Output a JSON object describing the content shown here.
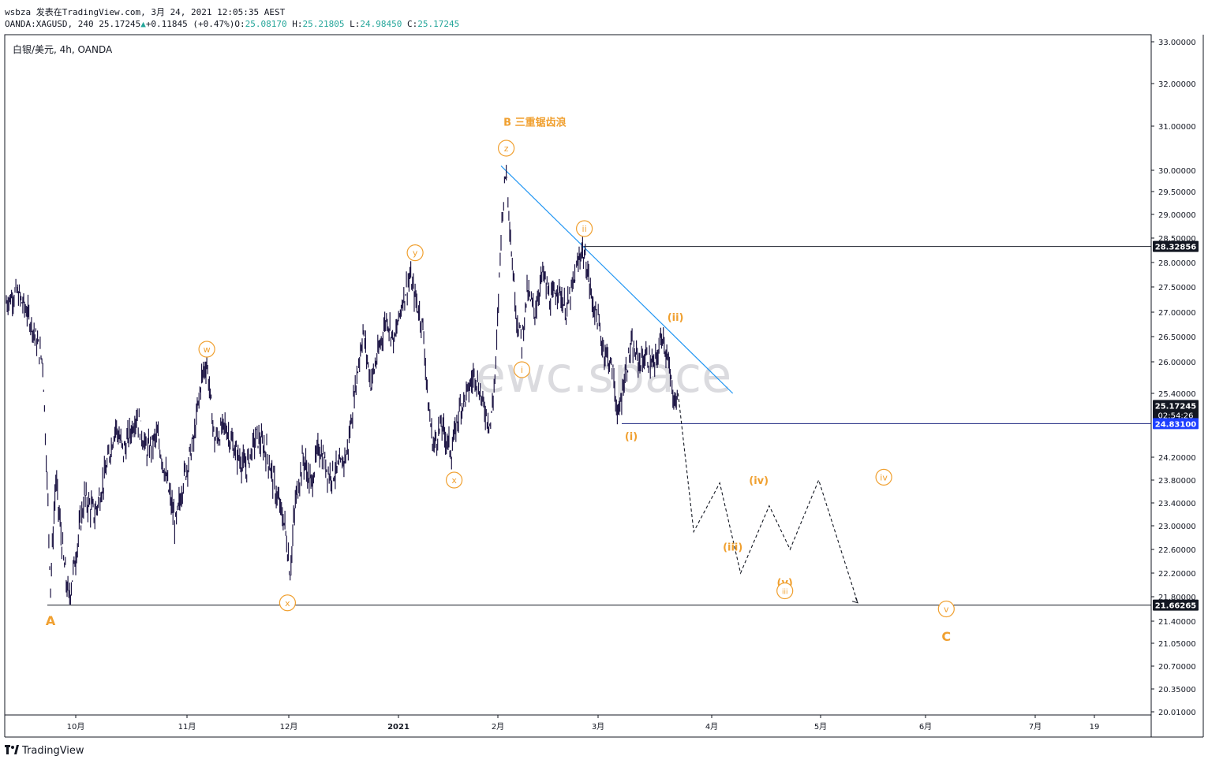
{
  "header": {
    "line1": "wsbza 发表在TradingView.com, 3月 24, 2021 12:05:35 AEST",
    "symbol": "OANDA:XAGUSD, 240 25.17245",
    "change": "+0.11845 (+0.47%)",
    "o_label": "O:",
    "o_value": "25.08170",
    "h_label": "H:",
    "h_value": "25.21805",
    "l_label": "L:",
    "l_value": "24.98450",
    "c_label": "C:",
    "c_value": "25.17245"
  },
  "footer": {
    "brand": "TradingView"
  },
  "colors": {
    "candle": "#1f1746",
    "wave": "#f0a030",
    "trend": "#2196f3",
    "grid": "#e0e3eb"
  },
  "chart_data": {
    "type": "candlestick",
    "title": "白银/美元, 4h, OANDA",
    "watermark": "ewc.space",
    "y_ticks": [
      33.0,
      32.0,
      31.0,
      30.0,
      29.5,
      29.0,
      28.5,
      28.0,
      27.5,
      27.0,
      26.5,
      26.0,
      25.4,
      24.2,
      23.8,
      23.4,
      23.0,
      22.6,
      22.2,
      21.8,
      21.4,
      21.05,
      20.7,
      20.35,
      20.01
    ],
    "y_tick_labels": [
      "33.00000",
      "32.00000",
      "31.00000",
      "30.00000",
      "29.50000",
      "29.00000",
      "28.50000",
      "28.00000",
      "27.50000",
      "27.00000",
      "26.50000",
      "26.00000",
      "25.40000",
      "24.20000",
      "23.80000",
      "23.40000",
      "23.00000",
      "22.60000",
      "22.20000",
      "21.80000",
      "21.40000",
      "21.05000",
      "20.70000",
      "20.35000",
      "20.01000"
    ],
    "x_ticks": [
      "10月",
      "11月",
      "12月",
      "2021",
      "2月",
      "3月",
      "4月",
      "5月",
      "6月",
      "7月",
      "19"
    ],
    "price_tags": [
      {
        "label": "28.32856",
        "value": 28.32856,
        "style": "dark"
      },
      {
        "label": "25.17245",
        "value": 25.17245,
        "style": "dark",
        "sub": "02:54:26"
      },
      {
        "label": "24.83100",
        "value": 24.831,
        "style": "blue"
      },
      {
        "label": "21.66265",
        "value": 21.66265,
        "style": "dark"
      }
    ],
    "horizontal_lines": [
      28.32856,
      24.831,
      21.66265
    ],
    "price_path": [
      [
        0,
        27.2
      ],
      [
        4,
        27.4
      ],
      [
        8,
        27.0
      ],
      [
        10,
        26.7
      ],
      [
        14,
        26.0
      ],
      [
        17,
        22.0
      ],
      [
        19,
        23.8
      ],
      [
        22,
        22.4
      ],
      [
        24,
        21.75
      ],
      [
        27,
        22.6
      ],
      [
        30,
        23.5
      ],
      [
        34,
        23.2
      ],
      [
        38,
        23.9
      ],
      [
        42,
        24.8
      ],
      [
        45,
        24.3
      ],
      [
        50,
        25.0
      ],
      [
        54,
        24.3
      ],
      [
        58,
        24.6
      ],
      [
        62,
        23.7
      ],
      [
        65,
        23.0
      ],
      [
        68,
        23.8
      ],
      [
        72,
        24.5
      ],
      [
        75,
        25.7
      ],
      [
        77,
        26.0
      ],
      [
        80,
        24.5
      ],
      [
        84,
        24.8
      ],
      [
        88,
        24.3
      ],
      [
        92,
        24.0
      ],
      [
        96,
        24.6
      ],
      [
        100,
        24.3
      ],
      [
        104,
        23.5
      ],
      [
        107,
        23.0
      ],
      [
        109,
        22.2
      ],
      [
        111,
        23.4
      ],
      [
        114,
        24.2
      ],
      [
        117,
        23.7
      ],
      [
        120,
        24.4
      ],
      [
        124,
        23.9
      ],
      [
        128,
        24.0
      ],
      [
        131,
        24.3
      ],
      [
        134,
        25.5
      ],
      [
        137,
        26.6
      ],
      [
        140,
        25.6
      ],
      [
        143,
        26.2
      ],
      [
        146,
        26.9
      ],
      [
        149,
        26.4
      ],
      [
        152,
        27.2
      ],
      [
        155,
        27.7
      ],
      [
        158,
        27.1
      ],
      [
        160,
        26.7
      ],
      [
        162,
        25.2
      ],
      [
        164,
        24.4
      ],
      [
        167,
        24.8
      ],
      [
        171,
        24.3
      ],
      [
        174,
        25.1
      ],
      [
        177,
        25.4
      ],
      [
        180,
        25.8
      ],
      [
        183,
        25.2
      ],
      [
        186,
        24.8
      ],
      [
        188,
        25.9
      ],
      [
        190,
        28.6
      ],
      [
        192,
        30.1
      ],
      [
        194,
        28.2
      ],
      [
        196,
        26.9
      ],
      [
        198,
        26.4
      ],
      [
        200,
        27.4
      ],
      [
        203,
        27.0
      ],
      [
        206,
        27.8
      ],
      [
        209,
        27.2
      ],
      [
        212,
        27.5
      ],
      [
        215,
        27.0
      ],
      [
        218,
        27.6
      ],
      [
        221,
        28.3
      ],
      [
        223,
        27.9
      ],
      [
        225,
        27.2
      ],
      [
        227,
        26.9
      ],
      [
        229,
        26.3
      ],
      [
        231,
        26.1
      ],
      [
        233,
        25.8
      ],
      [
        235,
        24.9
      ],
      [
        237,
        25.6
      ],
      [
        240,
        26.3
      ],
      [
        243,
        26.0
      ],
      [
        246,
        26.1
      ],
      [
        249,
        25.9
      ],
      [
        252,
        26.6
      ],
      [
        254,
        26.0
      ],
      [
        256,
        25.4
      ],
      [
        258,
        25.17
      ]
    ],
    "projection": [
      [
        258,
        25.4
      ],
      [
        264,
        22.9
      ],
      [
        274,
        23.75
      ],
      [
        282,
        22.2
      ],
      [
        293,
        23.35
      ],
      [
        301,
        22.6
      ],
      [
        312,
        23.8
      ],
      [
        327,
        21.7
      ]
    ],
    "trendline": [
      [
        190,
        30.1
      ],
      [
        279,
        25.4
      ]
    ],
    "wave_labels": [
      {
        "text": "A",
        "x": 17,
        "v": 21.4,
        "circle": false
      },
      {
        "text": "w",
        "x": 77,
        "v": 26.25,
        "circle": true
      },
      {
        "text": "x",
        "x": 108,
        "v": 21.7,
        "circle": true
      },
      {
        "text": "y",
        "x": 157,
        "v": 28.2,
        "circle": true
      },
      {
        "text": "x",
        "x": 172,
        "v": 23.8,
        "circle": true
      },
      {
        "text": "z",
        "x": 192,
        "v": 30.5,
        "circle": true
      },
      {
        "text": "B 三重锯齿浪",
        "x": 203,
        "v": 31.1,
        "circle": false
      },
      {
        "text": "i",
        "x": 198,
        "v": 25.85,
        "circle": true
      },
      {
        "text": "ii",
        "x": 222,
        "v": 28.7,
        "circle": true
      },
      {
        "text": "(i)",
        "x": 240,
        "v": 24.6,
        "circle": false
      },
      {
        "text": "(ii)",
        "x": 257,
        "v": 26.9,
        "circle": false
      },
      {
        "text": "(iii)",
        "x": 279,
        "v": 22.65,
        "circle": false
      },
      {
        "text": "(iv)",
        "x": 289,
        "v": 23.8,
        "circle": false
      },
      {
        "text": "(v)",
        "x": 299,
        "v": 22.05,
        "circle": false
      },
      {
        "text": "iii",
        "x": 299,
        "v": 21.9,
        "circle": true
      },
      {
        "text": "iv",
        "x": 337,
        "v": 23.85,
        "circle": true
      },
      {
        "text": "v",
        "x": 361,
        "v": 21.6,
        "circle": true
      },
      {
        "text": "C",
        "x": 361,
        "v": 21.15,
        "circle": false
      }
    ]
  }
}
